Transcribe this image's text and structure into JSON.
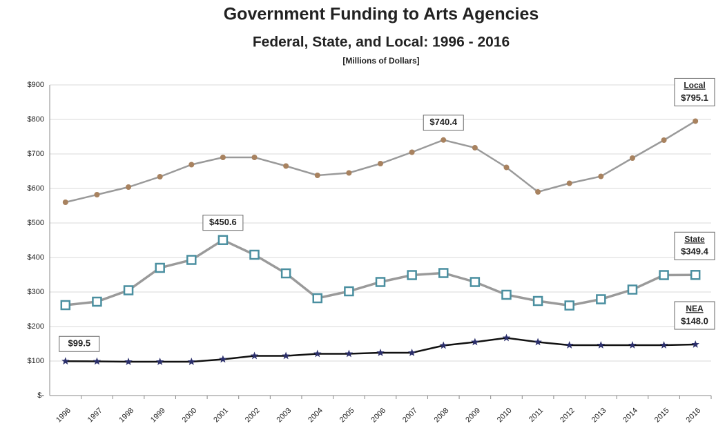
{
  "chart_data": {
    "type": "line",
    "title": "Government Funding to Arts Agencies",
    "subtitle": "Federal, State, and Local:  1996 - 2016",
    "note": "[Millions of Dollars]",
    "categories": [
      "1996",
      "1997",
      "1998",
      "1999",
      "2000",
      "2001",
      "2002",
      "2003",
      "2004",
      "2005",
      "2006",
      "2007",
      "2008",
      "2009",
      "2010",
      "2011",
      "2012",
      "2013",
      "2014",
      "2015",
      "2016"
    ],
    "series": [
      {
        "name": "Local",
        "color": "#a8825f",
        "line_color": "#9a9a9a",
        "values": [
          560,
          582,
          604,
          634,
          669,
          690,
          690,
          665,
          638,
          645,
          672,
          705,
          740.4,
          718,
          661,
          590,
          615,
          635,
          688,
          740,
          795.1
        ],
        "value_labels": [
          null,
          null,
          null,
          null,
          null,
          null,
          null,
          null,
          null,
          null,
          null,
          null,
          "$740.4",
          null,
          null,
          null,
          null,
          null,
          null,
          null,
          "$795.1"
        ]
      },
      {
        "name": "State",
        "color": "#4a8fa0",
        "line_color": "#9a9a9a",
        "values": [
          262,
          272,
          305,
          370,
          393,
          450.6,
          408,
          354,
          282,
          302,
          329,
          349,
          355,
          329,
          292,
          274,
          261,
          279,
          307,
          349,
          349.4
        ],
        "value_labels": [
          null,
          null,
          null,
          null,
          null,
          "$450.6",
          null,
          null,
          null,
          null,
          null,
          null,
          null,
          null,
          null,
          null,
          null,
          null,
          null,
          null,
          "$349.4"
        ]
      },
      {
        "name": "NEA",
        "color": "#2b2f6b",
        "line_color": "#111111",
        "values": [
          99.5,
          99,
          98,
          98,
          98,
          105,
          115,
          115,
          121,
          121,
          124,
          124,
          145,
          155,
          167,
          155,
          146,
          146,
          146,
          146,
          148.0
        ],
        "value_labels": [
          "$99.5",
          null,
          null,
          null,
          null,
          null,
          null,
          null,
          null,
          null,
          null,
          null,
          null,
          null,
          null,
          null,
          null,
          null,
          null,
          null,
          "$148.0"
        ]
      }
    ],
    "ylim": [
      0,
      900
    ],
    "yticks": [
      {
        "value": 0,
        "label": "$-"
      },
      {
        "value": 100,
        "label": "$100"
      },
      {
        "value": 200,
        "label": "$200"
      },
      {
        "value": 300,
        "label": "$300"
      },
      {
        "value": 400,
        "label": "$400"
      },
      {
        "value": 500,
        "label": "$500"
      },
      {
        "value": 600,
        "label": "$600"
      },
      {
        "value": 700,
        "label": "$700"
      },
      {
        "value": 800,
        "label": "$800"
      },
      {
        "value": 900,
        "label": "$900"
      }
    ],
    "grid": true
  }
}
